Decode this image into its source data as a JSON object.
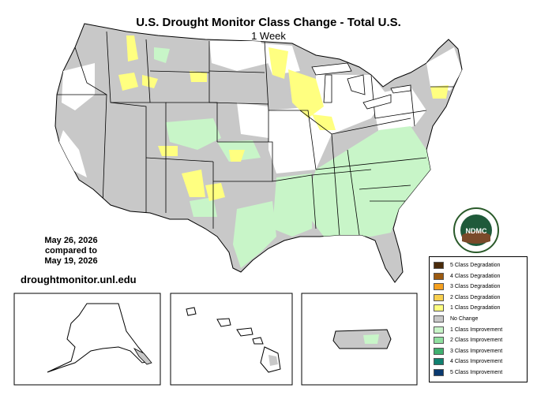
{
  "map": {
    "title": "U.S. Drought Monitor Class Change - Total U.S.",
    "subtitle": "1 Week",
    "date_current": "May 26, 2026",
    "date_compared_label": "compared to",
    "date_previous": "May 19, 2026",
    "website": "droughtmonitor.unl.edu",
    "logo_text": "NDMC",
    "colors": {
      "no_change": "#c8c8c8",
      "degradation_1": "#ffff80",
      "improvement_1": "#c8f5c8",
      "state_border": "#000000"
    }
  },
  "legend": {
    "items": [
      {
        "label": "5 Class Degradation",
        "color": "#4a2a0a"
      },
      {
        "label": "4 Class Degradation",
        "color": "#9c5a10"
      },
      {
        "label": "3 Class Degradation",
        "color": "#f5a020"
      },
      {
        "label": "2 Class Degradation",
        "color": "#f8d050"
      },
      {
        "label": "1 Class Degradation",
        "color": "#ffff80"
      },
      {
        "label": "No Change",
        "color": "#c8c8c8"
      },
      {
        "label": "1 Class Improvement",
        "color": "#c8f5c8"
      },
      {
        "label": "2 Class Improvement",
        "color": "#90e0a0"
      },
      {
        "label": "3 Class Improvement",
        "color": "#40b070"
      },
      {
        "label": "4 Class Improvement",
        "color": "#108070"
      },
      {
        "label": "5 Class Improvement",
        "color": "#0a3a70"
      }
    ]
  }
}
